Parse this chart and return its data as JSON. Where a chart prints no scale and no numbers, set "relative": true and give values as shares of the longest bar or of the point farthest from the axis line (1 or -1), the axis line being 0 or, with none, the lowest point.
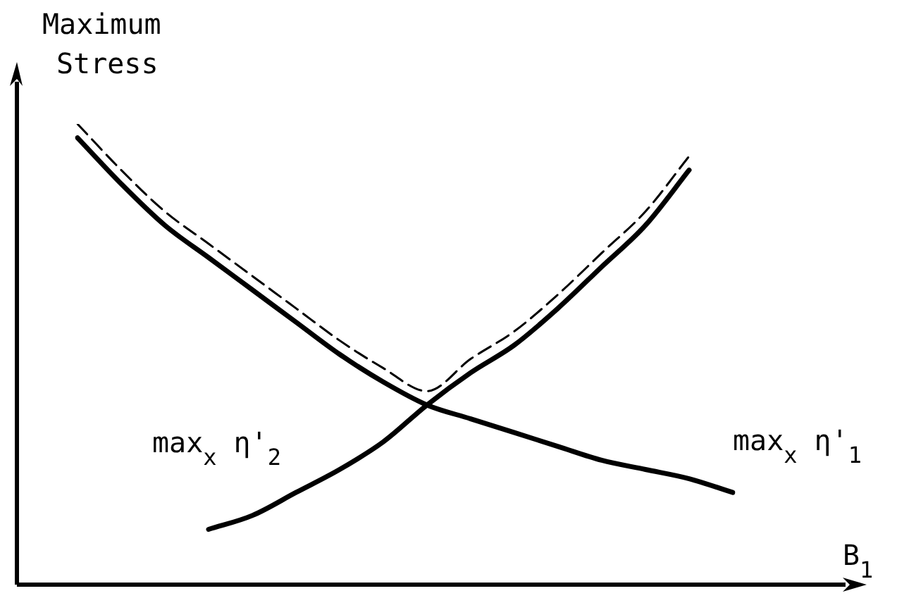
{
  "chart_data": {
    "type": "line",
    "relative": true,
    "ylabel": "Maximum\nStress",
    "xlabel": "B$_{1}$",
    "legend": false,
    "marker": "none",
    "categories": [
      null,
      null,
      null,
      null,
      null,
      null,
      null,
      null,
      null,
      null,
      null,
      null,
      null,
      null,
      null,
      null
    ],
    "series": [
      {
        "name": "max$_{x}$ η'$_{1}$",
        "color": "#000000",
        "line_style": "solid",
        "values": [
          0.97,
          0.87,
          0.78,
          0.71,
          0.64,
          0.57,
          0.5,
          0.44,
          0.39,
          0.36,
          0.33,
          0.3,
          0.27,
          0.25,
          0.23,
          0.2
        ]
      },
      {
        "name": "max$_{x}$ η'$_{2}$",
        "color": "#000000",
        "line_style": "solid",
        "values": [
          null,
          null,
          null,
          0.12,
          0.15,
          0.2,
          0.25,
          0.31,
          0.39,
          0.46,
          0.52,
          0.6,
          0.69,
          0.78,
          0.9,
          null
        ]
      },
      {
        "color": "#000000",
        "line_style": "dashed",
        "values": [
          1.0,
          0.9,
          0.81,
          0.74,
          0.67,
          0.6,
          0.53,
          0.47,
          0.42,
          0.49,
          0.55,
          0.63,
          0.72,
          0.81,
          0.93,
          null
        ]
      }
    ]
  }
}
